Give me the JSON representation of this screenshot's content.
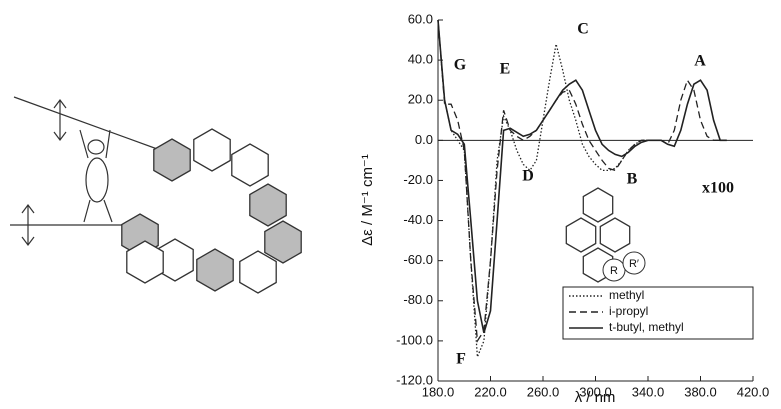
{
  "chart_data": {
    "type": "line",
    "xlabel": "λ / nm",
    "ylabel": "Δε / M⁻¹ cm⁻¹",
    "x": [
      180,
      185,
      190,
      195,
      200,
      205,
      210,
      215,
      220,
      225,
      230,
      235,
      240,
      245,
      250,
      255,
      260,
      265,
      270,
      275,
      280,
      285,
      290,
      295,
      300,
      305,
      310,
      315,
      320,
      325,
      330,
      335,
      340,
      345,
      350,
      355,
      360,
      365,
      370,
      375,
      380,
      385,
      390,
      395,
      400
    ],
    "series": [
      {
        "name": "methyl",
        "color": "#222",
        "dash": "dotted",
        "values": [
          60,
          20,
          5,
          0,
          -5,
          -60,
          -108,
          -100,
          -60,
          -10,
          12,
          5,
          -5,
          -12,
          -15,
          -10,
          10,
          30,
          48,
          35,
          20,
          10,
          -2,
          -8,
          -12,
          -15,
          -15,
          -14,
          -10,
          -5,
          -2,
          0,
          0,
          0,
          null,
          null,
          null,
          null,
          null,
          null,
          null,
          null,
          null,
          null,
          null
        ]
      },
      {
        "name": "i-propyl",
        "color": "#222",
        "dash": "dashed",
        "values": [
          60,
          18,
          18,
          10,
          -5,
          -60,
          -100,
          -95,
          -60,
          -15,
          15,
          5,
          2,
          0,
          2,
          5,
          10,
          15,
          20,
          24,
          25,
          18,
          8,
          0,
          -5,
          -10,
          -14,
          -15,
          -10,
          -5,
          -2,
          0,
          0,
          0,
          0,
          -2,
          5,
          20,
          30,
          25,
          10,
          2,
          0,
          0,
          null
        ]
      },
      {
        "name": "t-butyl, methyl",
        "color": "#222",
        "dash": "solid",
        "values": [
          60,
          20,
          5,
          3,
          -2,
          -40,
          -80,
          -96,
          -85,
          -40,
          5,
          6,
          4,
          2,
          3,
          5,
          10,
          15,
          20,
          25,
          28,
          30,
          25,
          15,
          5,
          -2,
          -5,
          -7,
          -8,
          -6,
          -3,
          -1,
          0,
          0,
          0,
          -2,
          -3,
          5,
          18,
          28,
          30,
          25,
          10,
          0,
          0
        ]
      }
    ],
    "xlim": [
      180,
      420
    ],
    "ylim": [
      -120,
      60
    ],
    "xticks": [
      {
        "value": 180,
        "label": "180.0"
      },
      {
        "value": 220,
        "label": "220.0"
      },
      {
        "value": 260,
        "label": "260.0"
      },
      {
        "value": 300,
        "label": "300.0"
      },
      {
        "value": 340,
        "label": "340.0"
      },
      {
        "value": 380,
        "label": "380.0"
      },
      {
        "value": 420,
        "label": "420.0"
      }
    ],
    "yticks": [
      {
        "value": 60,
        "label": "60.0"
      },
      {
        "value": 40,
        "label": "40.0"
      },
      {
        "value": 20,
        "label": "20.0"
      },
      {
        "value": 0,
        "label": "0.0"
      },
      {
        "value": -20,
        "label": "-20.0"
      },
      {
        "value": -40,
        "label": "-40.0"
      },
      {
        "value": -60,
        "label": "-60.0"
      },
      {
        "value": -80,
        "label": "-80.0"
      },
      {
        "value": -100,
        "label": "-100.0"
      },
      {
        "value": -120,
        "label": "-120.0"
      }
    ],
    "legend": "lower right",
    "annotations": [
      "G",
      "E",
      "C",
      "A",
      "D",
      "B",
      "F",
      "x100"
    ],
    "inset_labels": [
      "R",
      "R′"
    ]
  }
}
